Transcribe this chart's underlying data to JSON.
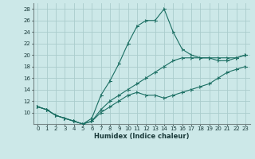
{
  "xlabel": "Humidex (Indice chaleur)",
  "background_color": "#cce8e8",
  "grid_color": "#aacccc",
  "line_color": "#1a6e62",
  "xlim": [
    -0.5,
    23.5
  ],
  "ylim": [
    8,
    29
  ],
  "xticks": [
    0,
    1,
    2,
    3,
    4,
    5,
    6,
    7,
    8,
    9,
    10,
    11,
    12,
    13,
    14,
    15,
    16,
    17,
    18,
    19,
    20,
    21,
    22,
    23
  ],
  "yticks": [
    10,
    12,
    14,
    16,
    18,
    20,
    22,
    24,
    26,
    28
  ],
  "line_main_x": [
    0,
    1,
    2,
    3,
    4,
    5,
    6,
    7,
    8,
    9,
    10,
    11,
    12,
    13,
    14,
    15,
    16,
    17,
    18,
    19,
    20,
    21,
    22,
    23
  ],
  "line_main_y": [
    11,
    10.5,
    9.5,
    9,
    8.5,
    8,
    9,
    13,
    15.5,
    18.5,
    22,
    25,
    26,
    26,
    28,
    24,
    21,
    20,
    19.5,
    19.5,
    19,
    19,
    19.5,
    20
  ],
  "line_low_x": [
    0,
    1,
    2,
    3,
    4,
    5,
    6,
    7,
    8,
    9,
    10,
    11,
    12,
    13,
    14,
    15,
    16,
    17,
    18,
    19,
    20,
    21,
    22,
    23
  ],
  "line_low_y": [
    11,
    10.5,
    9.5,
    9,
    8.5,
    8,
    8.5,
    10,
    11,
    12,
    13,
    13.5,
    13,
    13,
    12.5,
    13,
    13.5,
    14,
    14.5,
    15,
    16,
    17,
    17.5,
    18
  ],
  "line_trend_x": [
    0,
    1,
    2,
    3,
    4,
    5,
    6,
    7,
    8,
    9,
    10,
    11,
    12,
    13,
    14,
    15,
    16,
    17,
    18,
    19,
    20,
    21,
    22,
    23
  ],
  "line_trend_y": [
    11,
    10.5,
    9.5,
    9,
    8.5,
    8,
    8.5,
    10.5,
    12,
    13,
    14,
    15,
    16,
    17,
    18,
    19,
    19.5,
    19.5,
    19.5,
    19.5,
    19.5,
    19.5,
    19.5,
    20
  ],
  "xlabel_fontsize": 6,
  "tick_fontsize": 5
}
